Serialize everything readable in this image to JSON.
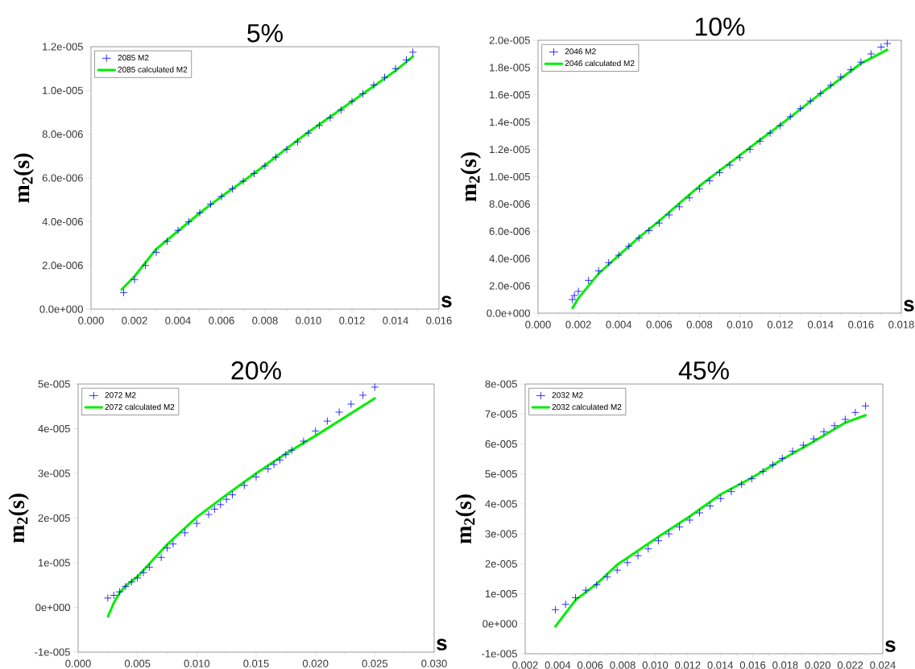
{
  "chart_data": [
    {
      "type": "scatter",
      "title": "5%",
      "xlabel": "s",
      "ylabel": "m$_{2}$(s)",
      "legend": "top left",
      "marker": "cross",
      "xlim": [
        0,
        0.016
      ],
      "ylim": [
        0,
        1.2e-05
      ],
      "xticks": [
        {
          "value": 0,
          "label": "0.000"
        },
        {
          "value": 0.002,
          "label": "0.002"
        },
        {
          "value": 0.004,
          "label": "0.004"
        },
        {
          "value": 0.006,
          "label": "0.006"
        },
        {
          "value": 0.008,
          "label": "0.008"
        },
        {
          "value": 0.01,
          "label": "0.010"
        },
        {
          "value": 0.012,
          "label": "0.012"
        },
        {
          "value": 0.014,
          "label": "0.014"
        },
        {
          "value": 0.016,
          "label": "0.016"
        }
      ],
      "yticks": [
        {
          "value": 0,
          "label": "0.0e+000"
        },
        {
          "value": 2e-06,
          "label": "2.0e-006"
        },
        {
          "value": 4e-06,
          "label": "4.0e-006"
        },
        {
          "value": 6e-06,
          "label": "6.0e-006"
        },
        {
          "value": 8e-06,
          "label": "8.0e-006"
        },
        {
          "value": 1e-05,
          "label": "1.0e-005"
        },
        {
          "value": 1.2e-05,
          "label": "1.2e-005"
        }
      ],
      "series": [
        {
          "name": "2085 M2",
          "color": "#0000ff",
          "x": [
            0.0015,
            0.002,
            0.0025,
            0.003,
            0.0035,
            0.004,
            0.0045,
            0.005,
            0.0055,
            0.006,
            0.0065,
            0.007,
            0.0075,
            0.008,
            0.0085,
            0.009,
            0.0095,
            0.01,
            0.0105,
            0.011,
            0.0115,
            0.012,
            0.0125,
            0.013,
            0.0135,
            0.014,
            0.0145,
            0.0148
          ],
          "values": [
            7.6e-07,
            1.35e-06,
            2e-06,
            2.6e-06,
            3.1e-06,
            3.6e-06,
            4e-06,
            4.4e-06,
            4.8e-06,
            5.15e-06,
            5.5e-06,
            5.85e-06,
            6.2e-06,
            6.55e-06,
            6.95e-06,
            7.3e-06,
            7.65e-06,
            8.05e-06,
            8.4e-06,
            8.75e-06,
            9.1e-06,
            9.5e-06,
            9.85e-06,
            1.025e-05,
            1.06e-05,
            1.1e-05,
            1.14e-05,
            1.175e-05
          ]
        },
        {
          "name": "2085 calculated M2",
          "type": "line",
          "marker": "none",
          "color": "#00ee00",
          "x": [
            0.00141,
            0.002,
            0.003,
            0.004,
            0.005,
            0.006,
            0.007,
            0.008,
            0.009,
            0.01,
            0.011,
            0.012,
            0.013,
            0.014,
            0.0148
          ],
          "values": [
            9e-07,
            1.5e-06,
            2.75e-06,
            3.57e-06,
            4.4e-06,
            5.15e-06,
            5.85e-06,
            6.58e-06,
            7.35e-06,
            8.1e-06,
            8.8e-06,
            9.5e-06,
            1.02e-05,
            1.09e-05,
            1.155e-05
          ]
        }
      ]
    },
    {
      "type": "scatter",
      "title": "10%",
      "xlabel": "s",
      "ylabel": "m$_{2}$(s)",
      "legend": "top left",
      "marker": "cross",
      "xlim": [
        0,
        0.018
      ],
      "ylim": [
        0,
        2e-05
      ],
      "xticks": [
        {
          "value": 0,
          "label": "0.000"
        },
        {
          "value": 0.002,
          "label": "0.002"
        },
        {
          "value": 0.004,
          "label": "0.004"
        },
        {
          "value": 0.006,
          "label": "0.006"
        },
        {
          "value": 0.008,
          "label": "0.008"
        },
        {
          "value": 0.01,
          "label": "0.010"
        },
        {
          "value": 0.012,
          "label": "0.012"
        },
        {
          "value": 0.014,
          "label": "0.014"
        },
        {
          "value": 0.016,
          "label": "0.016"
        },
        {
          "value": 0.018,
          "label": "0.018"
        }
      ],
      "yticks": [
        {
          "value": 0,
          "label": "0.0e+000"
        },
        {
          "value": 2e-06,
          "label": "2.0e-006"
        },
        {
          "value": 4e-06,
          "label": "4.0e-006"
        },
        {
          "value": 6e-06,
          "label": "6.0e-006"
        },
        {
          "value": 8e-06,
          "label": "8.0e-006"
        },
        {
          "value": 1e-05,
          "label": "1.0e-005"
        },
        {
          "value": 1.2e-05,
          "label": "1.2e-005"
        },
        {
          "value": 1.4e-05,
          "label": "1.4e-005"
        },
        {
          "value": 1.6e-05,
          "label": "1.6e-005"
        },
        {
          "value": 1.8e-05,
          "label": "1.8e-005"
        },
        {
          "value": 2e-05,
          "label": "2.0e-005"
        }
      ],
      "series": [
        {
          "name": "2046 M2",
          "color": "#0000ff",
          "x": [
            0.0017,
            0.0018,
            0.002,
            0.0025,
            0.003,
            0.0035,
            0.004,
            0.0045,
            0.005,
            0.0055,
            0.006,
            0.0065,
            0.007,
            0.0075,
            0.008,
            0.0085,
            0.009,
            0.0095,
            0.01,
            0.0105,
            0.011,
            0.0115,
            0.012,
            0.0125,
            0.013,
            0.0135,
            0.014,
            0.0145,
            0.015,
            0.0155,
            0.016,
            0.0165,
            0.017,
            0.0173
          ],
          "values": [
            1e-06,
            1.3e-06,
            1.6e-06,
            2.4e-06,
            3.1e-06,
            3.7e-06,
            4.25e-06,
            4.9e-06,
            5.5e-06,
            6.05e-06,
            6.6e-06,
            7.2e-06,
            7.8e-06,
            8.45e-06,
            9.1e-06,
            9.7e-06,
            1.03e-05,
            1.085e-05,
            1.14e-05,
            1.2e-05,
            1.26e-05,
            1.32e-05,
            1.375e-05,
            1.44e-05,
            1.5e-05,
            1.555e-05,
            1.61e-05,
            1.67e-05,
            1.73e-05,
            1.785e-05,
            1.84e-05,
            1.9e-05,
            1.95e-05,
            1.976e-05
          ]
        },
        {
          "name": "2046 calculated M2",
          "type": "line",
          "marker": "none",
          "color": "#00ee00",
          "x": [
            0.00171,
            0.002,
            0.003,
            0.004,
            0.005,
            0.006,
            0.007,
            0.008,
            0.009,
            0.01,
            0.011,
            0.012,
            0.013,
            0.014,
            0.015,
            0.016,
            0.0173
          ],
          "values": [
            3.9e-07,
            1.1e-06,
            2.9e-06,
            4.24e-06,
            5.55e-06,
            6.75e-06,
            8.05e-06,
            9.32e-06,
            1.045e-05,
            1.157e-05,
            1.27e-05,
            1.38e-05,
            1.495e-05,
            1.61e-05,
            1.72e-05,
            1.83e-05,
            1.93e-05
          ]
        }
      ]
    },
    {
      "type": "scatter",
      "title": "20%",
      "xlabel": "s",
      "ylabel": "m$_{2}$(s)",
      "legend": "top left",
      "marker": "cross",
      "xlim": [
        0,
        0.03
      ],
      "ylim": [
        -1e-05,
        5e-05
      ],
      "xticks": [
        {
          "value": 0,
          "label": "0.000"
        },
        {
          "value": 0.005,
          "label": "0.005"
        },
        {
          "value": 0.01,
          "label": "0.010"
        },
        {
          "value": 0.015,
          "label": "0.015"
        },
        {
          "value": 0.02,
          "label": "0.020"
        },
        {
          "value": 0.025,
          "label": "0.025"
        },
        {
          "value": 0.03,
          "label": "0.030"
        }
      ],
      "yticks": [
        {
          "value": -1e-05,
          "label": "-1e-005"
        },
        {
          "value": 0,
          "label": "0e+000"
        },
        {
          "value": 1e-05,
          "label": "1e-005"
        },
        {
          "value": 2e-05,
          "label": "2e-005"
        },
        {
          "value": 3e-05,
          "label": "3e-005"
        },
        {
          "value": 4e-05,
          "label": "4e-005"
        },
        {
          "value": 5e-05,
          "label": "5e-005"
        }
      ],
      "series": [
        {
          "name": "2072 M2",
          "color": "#0000ff",
          "x": [
            0.0025,
            0.003,
            0.0035,
            0.004,
            0.0045,
            0.005,
            0.0055,
            0.006,
            0.007,
            0.0075,
            0.008,
            0.009,
            0.01,
            0.011,
            0.0115,
            0.012,
            0.0125,
            0.013,
            0.014,
            0.015,
            0.016,
            0.0165,
            0.017,
            0.0175,
            0.018,
            0.019,
            0.02,
            0.021,
            0.022,
            0.023,
            0.024,
            0.025
          ],
          "values": [
            2.1e-06,
            2.7e-06,
            3.5e-06,
            4.7e-06,
            5.7e-06,
            6.6e-06,
            7.8e-06,
            9e-06,
            1.12e-05,
            1.33e-05,
            1.42e-05,
            1.67e-05,
            1.88e-05,
            2.08e-05,
            2.2e-05,
            2.3e-05,
            2.42e-05,
            2.52e-05,
            2.73e-05,
            2.92e-05,
            3.1e-05,
            3.2e-05,
            3.3e-05,
            3.42e-05,
            3.52e-05,
            3.72e-05,
            3.95e-05,
            4.17e-05,
            4.37e-05,
            4.55e-05,
            4.75e-05,
            4.93e-05
          ]
        },
        {
          "name": "2072 calculated M2",
          "type": "line",
          "marker": "none",
          "color": "#00ee00",
          "x": [
            0.00252,
            0.003,
            0.0035,
            0.004,
            0.005,
            0.0075,
            0.01,
            0.0125,
            0.015,
            0.0175,
            0.02,
            0.0225,
            0.025
          ],
          "values": [
            -2e-06,
            1e-06,
            3.3e-06,
            4.8e-06,
            6.9e-06,
            1.41e-05,
            2.02e-05,
            2.52e-05,
            3e-05,
            3.44e-05,
            3.84e-05,
            4.26e-05,
            4.68e-05
          ]
        }
      ]
    },
    {
      "type": "scatter",
      "title": "45%",
      "xlabel": "s",
      "ylabel": "m$_{2}$(s)",
      "legend": "top left",
      "marker": "cross",
      "xlim": [
        0.002,
        0.024
      ],
      "ylim": [
        -1e-05,
        8e-05
      ],
      "xticks": [
        {
          "value": 0.002,
          "label": "0.002"
        },
        {
          "value": 0.004,
          "label": "0.004"
        },
        {
          "value": 0.006,
          "label": "0.006"
        },
        {
          "value": 0.008,
          "label": "0.008"
        },
        {
          "value": 0.01,
          "label": "0.010"
        },
        {
          "value": 0.012,
          "label": "0.012"
        },
        {
          "value": 0.014,
          "label": "0.014"
        },
        {
          "value": 0.016,
          "label": "0.016"
        },
        {
          "value": 0.018,
          "label": "0.018"
        },
        {
          "value": 0.02,
          "label": "0.020"
        },
        {
          "value": 0.022,
          "label": "0.022"
        },
        {
          "value": 0.024,
          "label": "0.024"
        }
      ],
      "yticks": [
        {
          "value": -1e-05,
          "label": "-1e-005"
        },
        {
          "value": 0,
          "label": "0e+000"
        },
        {
          "value": 1e-05,
          "label": "1e-005"
        },
        {
          "value": 2e-05,
          "label": "2e-005"
        },
        {
          "value": 3e-05,
          "label": "3e-005"
        },
        {
          "value": 4e-05,
          "label": "4e-005"
        },
        {
          "value": 5e-05,
          "label": "5e-005"
        },
        {
          "value": 6e-05,
          "label": "6e-005"
        },
        {
          "value": 7e-05,
          "label": "7e-005"
        },
        {
          "value": 8e-05,
          "label": "8e-005"
        }
      ],
      "series": [
        {
          "name": "2032 M2",
          "color": "#0000ff",
          "x": [
            0.00386,
            0.00449,
            0.0051,
            0.00573,
            0.0064,
            0.00705,
            0.00766,
            0.00829,
            0.00894,
            0.00957,
            0.0102,
            0.01084,
            0.01149,
            0.01212,
            0.01273,
            0.01338,
            0.01403,
            0.01468,
            0.01531,
            0.01594,
            0.01663,
            0.01724,
            0.01782,
            0.01845,
            0.01911,
            0.01975,
            0.02038,
            0.02103,
            0.02169,
            0.02231,
            0.02294
          ],
          "values": [
            4.7e-06,
            6.5e-06,
            8.7e-06,
            1.12e-05,
            1.3e-05,
            1.56e-05,
            1.79e-05,
            2.04e-05,
            2.27e-05,
            2.5e-05,
            2.77e-05,
            3e-05,
            3.23e-05,
            3.46e-05,
            3.7e-05,
            3.93e-05,
            4.18e-05,
            4.41e-05,
            4.65e-05,
            4.84e-05,
            5.08e-05,
            5.3e-05,
            5.52e-05,
            5.76e-05,
            5.96e-05,
            6.17e-05,
            6.41e-05,
            6.61e-05,
            6.82e-05,
            7.05e-05,
            7.27e-05
          ]
        },
        {
          "name": "2032 calculated M2",
          "type": "line",
          "marker": "none",
          "color": "#00ee00",
          "x": [
            0.00386,
            0.0051,
            0.0064,
            0.00766,
            0.0102,
            0.01212,
            0.01403,
            0.01594,
            0.01782,
            0.01975,
            0.02169,
            0.02294
          ],
          "values": [
            -9e-07,
            7.9e-06,
            1.33e-05,
            1.97e-05,
            2.9e-05,
            3.58e-05,
            4.32e-05,
            4.87e-05,
            5.49e-05,
            6.08e-05,
            6.71e-05,
            6.96e-05
          ]
        }
      ]
    }
  ]
}
